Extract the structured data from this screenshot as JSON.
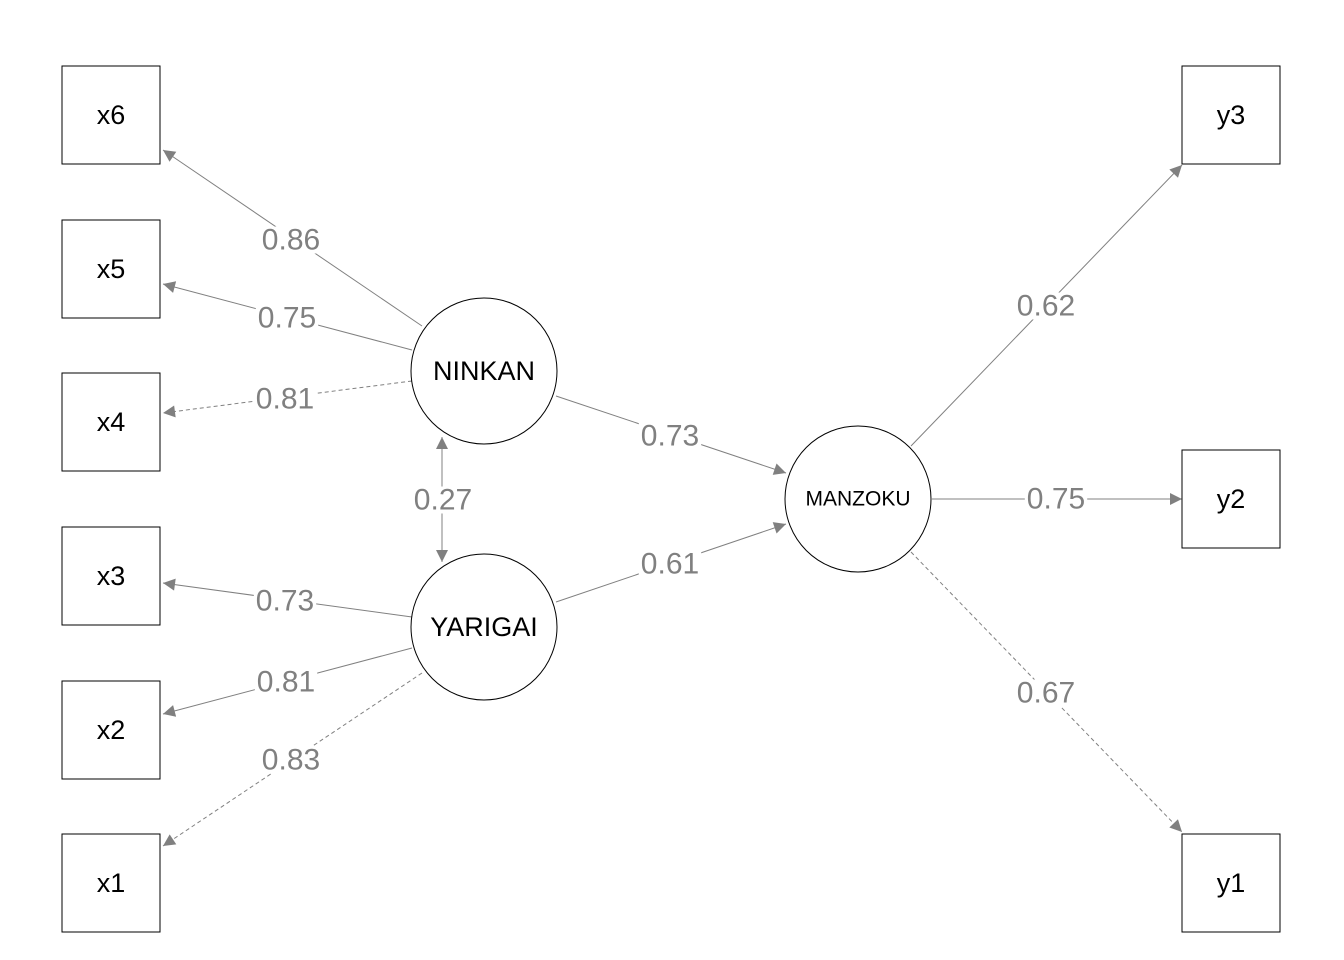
{
  "nodes": [
    {
      "label": "x6"
    },
    {
      "label": "x5"
    },
    {
      "label": "x4"
    },
    {
      "label": "x3"
    },
    {
      "label": "x2"
    },
    {
      "label": "x1"
    },
    {
      "label": "y3"
    },
    {
      "label": "y2"
    },
    {
      "label": "y1"
    },
    {
      "label": "NINKAN"
    },
    {
      "label": "YARIGAI"
    },
    {
      "label": "MANZOKU"
    }
  ],
  "edges": [
    {
      "label": "0.86"
    },
    {
      "label": "0.75"
    },
    {
      "label": "0.81",
      "dashed": true
    },
    {
      "label": "0.73"
    },
    {
      "label": "0.27"
    },
    {
      "label": "0.73"
    },
    {
      "label": "0.81"
    },
    {
      "label": "0.83",
      "dashed": true
    },
    {
      "label": "0.61"
    },
    {
      "label": "0.62"
    },
    {
      "label": "0.75"
    },
    {
      "label": "0.67",
      "dashed": true
    }
  ]
}
